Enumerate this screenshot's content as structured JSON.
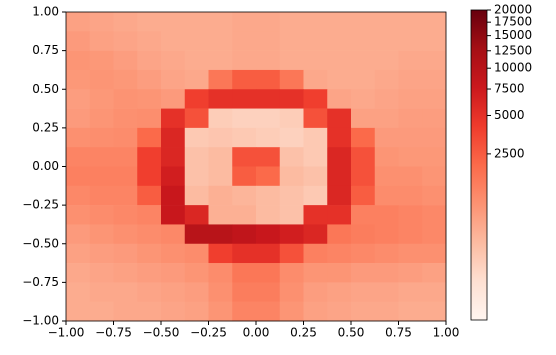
{
  "chart_data": {
    "type": "heatmap",
    "xbins": [
      -1,
      -0.875,
      -0.75,
      -0.625,
      -0.5,
      -0.375,
      -0.25,
      -0.125,
      0,
      0.125,
      0.25,
      0.375,
      0.5,
      0.625,
      0.75,
      0.875,
      1
    ],
    "ybins": [
      1,
      0.875,
      0.75,
      0.625,
      0.5,
      0.375,
      0.25,
      0.125,
      0,
      -0.125,
      -0.25,
      -0.375,
      -0.5,
      -0.625,
      -0.75,
      -0.875,
      -1
    ],
    "z": [
      [
        500,
        450,
        400,
        350,
        350,
        350,
        350,
        400,
        400,
        350,
        350,
        350,
        350,
        350,
        350,
        350
      ],
      [
        600,
        500,
        450,
        400,
        350,
        350,
        350,
        400,
        400,
        350,
        350,
        350,
        350,
        350,
        350,
        350
      ],
      [
        700,
        650,
        550,
        450,
        400,
        350,
        350,
        400,
        400,
        350,
        350,
        350,
        350,
        350,
        400,
        400
      ],
      [
        650,
        700,
        650,
        550,
        450,
        400,
        1500,
        2500,
        2500,
        1500,
        400,
        350,
        350,
        400,
        450,
        450
      ],
      [
        550,
        650,
        750,
        700,
        600,
        4000,
        5000,
        5000,
        5000,
        5000,
        4000,
        450,
        400,
        450,
        500,
        500
      ],
      [
        600,
        700,
        800,
        850,
        5000,
        3000,
        80,
        60,
        60,
        80,
        3000,
        5000,
        500,
        500,
        550,
        550
      ],
      [
        800,
        850,
        900,
        2000,
        6000,
        100,
        120,
        100,
        80,
        60,
        100,
        5000,
        2000,
        600,
        600,
        600
      ],
      [
        1100,
        1100,
        1100,
        4000,
        6000,
        150,
        200,
        3000,
        3000,
        150,
        100,
        6000,
        3000,
        700,
        650,
        650
      ],
      [
        1200,
        1200,
        1200,
        4000,
        7000,
        150,
        200,
        2500,
        2000,
        200,
        150,
        6000,
        3000,
        800,
        800,
        700
      ],
      [
        1000,
        1100,
        1100,
        2500,
        8000,
        200,
        300,
        250,
        200,
        150,
        100,
        6000,
        2500,
        900,
        900,
        800
      ],
      [
        800,
        900,
        1000,
        1100,
        8000,
        6000,
        300,
        300,
        200,
        150,
        5000,
        5000,
        1200,
        1200,
        1100,
        1000
      ],
      [
        600,
        700,
        800,
        900,
        1000,
        10000,
        10000,
        9000,
        8000,
        7000,
        6000,
        1500,
        1300,
        1200,
        1100,
        1000
      ],
      [
        500,
        550,
        600,
        700,
        800,
        900,
        4000,
        5000,
        5000,
        3000,
        1200,
        1100,
        1000,
        900,
        800,
        800
      ],
      [
        400,
        450,
        500,
        550,
        600,
        700,
        900,
        1500,
        1500,
        900,
        700,
        700,
        600,
        600,
        550,
        500
      ],
      [
        350,
        400,
        400,
        450,
        500,
        550,
        800,
        1300,
        1300,
        800,
        550,
        500,
        450,
        450,
        400,
        400
      ],
      [
        350,
        350,
        400,
        400,
        450,
        500,
        700,
        1100,
        1100,
        700,
        500,
        450,
        400,
        400,
        350,
        350
      ]
    ],
    "xlim": [
      -1,
      1
    ],
    "ylim": [
      -1,
      1
    ],
    "xticks": [
      {
        "value": -1,
        "label": "−1.00"
      },
      {
        "value": -0.75,
        "label": "−0.75"
      },
      {
        "value": -0.5,
        "label": "−0.50"
      },
      {
        "value": -0.25,
        "label": "−0.25"
      },
      {
        "value": 0,
        "label": "0.00"
      },
      {
        "value": 0.25,
        "label": "0.25"
      },
      {
        "value": 0.5,
        "label": "0.50"
      },
      {
        "value": 0.75,
        "label": "0.75"
      },
      {
        "value": 1,
        "label": "1.00"
      }
    ],
    "yticks": [
      {
        "value": -1,
        "label": "−1.00"
      },
      {
        "value": -0.75,
        "label": "−0.75"
      },
      {
        "value": -0.5,
        "label": "−0.50"
      },
      {
        "value": -0.25,
        "label": "−0.25"
      },
      {
        "value": 0,
        "label": "0.00"
      },
      {
        "value": 0.25,
        "label": "0.25"
      },
      {
        "value": 0.5,
        "label": "0.50"
      },
      {
        "value": 0.75,
        "label": "0.75"
      },
      {
        "value": 1,
        "label": "1.00"
      }
    ],
    "clim": [
      0,
      20000
    ],
    "gamma": 0.3,
    "cticks": [
      2500,
      5000,
      7500,
      10000,
      12500,
      15000,
      17500,
      20000
    ],
    "colormap": [
      "#fff5f0",
      "#fee0d2",
      "#fcbba1",
      "#fc9272",
      "#fb6a4a",
      "#ef3b2c",
      "#cb181d",
      "#a50f15",
      "#67000d"
    ]
  }
}
